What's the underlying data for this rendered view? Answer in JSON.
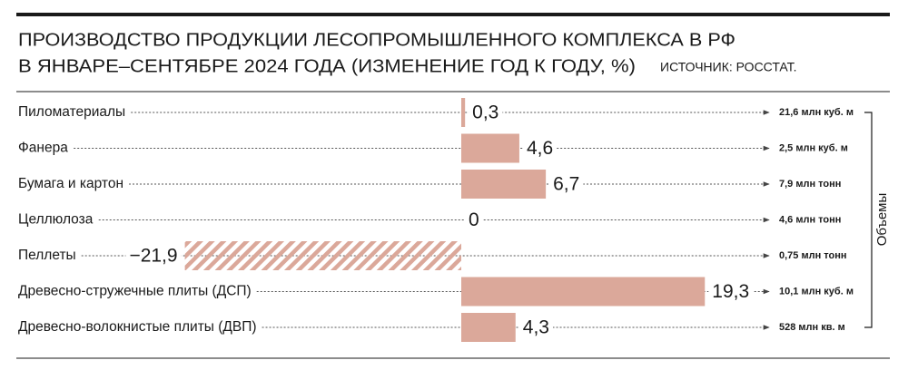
{
  "chart_data": {
    "type": "bar",
    "orientation": "horizontal",
    "title": [
      "ПРОИЗВОДСТВО ПРОДУКЦИИ ЛЕСОПРОМЫШЛЕННОГО КОМПЛЕКСА В РФ",
      "В ЯНВАРЕ–СЕНТЯБРЕ 2024 ГОДА (ИЗМЕНЕНИЕ ГОД К ГОДУ, %)"
    ],
    "source": "ИСТОЧНИК: РОССТАТ.",
    "categories": [
      "Пиломатериалы",
      "Фанера",
      "Бумага и картон",
      "Целлюлоза",
      "Пеллеты",
      "Древесно-стружечные плиты (ДСП)",
      "Древесно-волокнистые плиты (ДВП)"
    ],
    "values": [
      0.3,
      4.6,
      6.7,
      0,
      -21.9,
      19.3,
      4.3
    ],
    "value_labels": [
      "0,3",
      "4,6",
      "6,7",
      "0",
      "−21,9",
      "19,3",
      "4,3"
    ],
    "volumes_label": "Объемы",
    "volumes": [
      "21,6 млн куб. м",
      "2,5 млн куб. м",
      "7,9 млн тонн",
      "4,6 млн тонн",
      "0,75 млн тонн",
      "10,1 млн куб. м",
      "528 млн кв. м"
    ],
    "color": "#dba89a"
  }
}
